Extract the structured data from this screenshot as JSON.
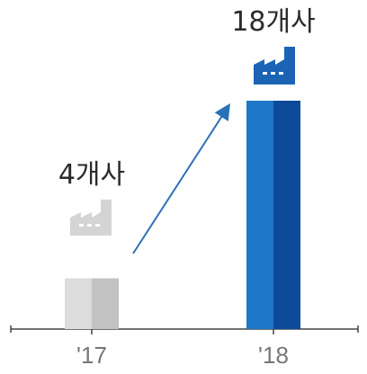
{
  "chart_data": {
    "type": "bar",
    "categories": [
      "'17",
      "'18"
    ],
    "values": [
      4,
      18
    ],
    "value_labels": [
      "4개사",
      "18개사"
    ],
    "ylim": [
      0,
      18
    ],
    "grid": false,
    "legend": "none",
    "icons": [
      "factory-icon",
      "factory-icon"
    ],
    "annotation": "growth-arrow"
  },
  "colors": {
    "bar_17_light": "#dcdcdc",
    "bar_17_dark": "#c2c2c2",
    "bar_18_light": "#1f77c9",
    "bar_18_dark": "#0f4a9a",
    "icon_17": "#d4d4d4",
    "icon_18": "#1a63b5",
    "arrow": "#2a72b8",
    "axis": "#444444"
  }
}
